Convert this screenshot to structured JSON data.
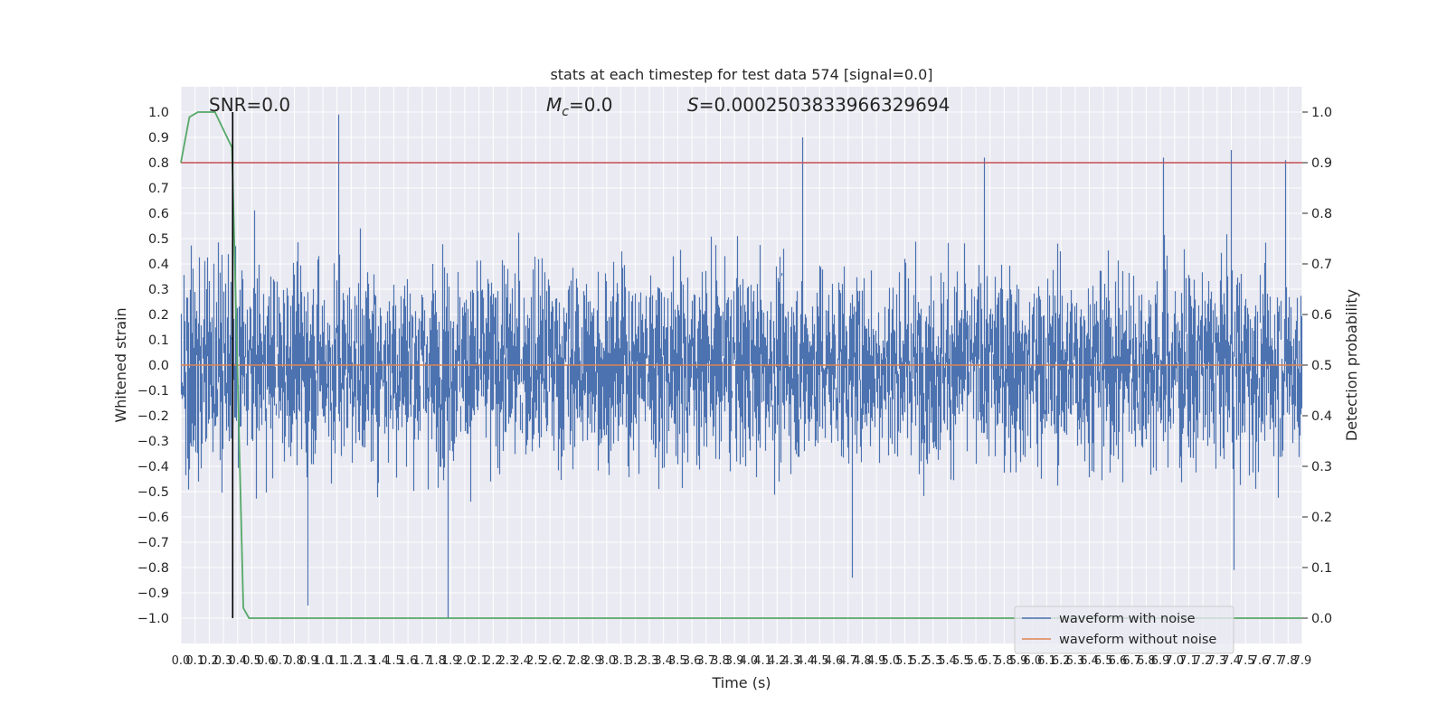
{
  "chart_data": {
    "type": "line",
    "title": "stats at each timestep for test data 574 [signal=0.0]",
    "xlabel": "Time (s)",
    "ylabel_left": "Whitened strain",
    "ylabel_right": "Detection probability",
    "xlim": [
      0.0,
      7.9
    ],
    "ylim_left": [
      -1.1,
      1.1
    ],
    "ylim_right": [
      -0.05,
      1.05
    ],
    "x_ticks": [
      "0.0",
      "0.1",
      "0.2",
      "0.3",
      "0.4",
      "0.5",
      "0.6",
      "0.7",
      "0.8",
      "0.9",
      "1.0",
      "1.1",
      "1.2",
      "1.3",
      "1.4",
      "1.5",
      "1.6",
      "1.7",
      "1.8",
      "1.9",
      "2.0",
      "2.1",
      "2.2",
      "2.3",
      "2.4",
      "2.5",
      "2.6",
      "2.7",
      "2.8",
      "2.9",
      "3.0",
      "3.1",
      "3.2",
      "3.3",
      "3.4",
      "3.5",
      "3.6",
      "3.7",
      "3.8",
      "3.9",
      "4.0",
      "4.1",
      "4.2",
      "4.3",
      "4.4",
      "4.5",
      "4.6",
      "4.7",
      "4.8",
      "4.9",
      "5.0",
      "5.1",
      "5.2",
      "5.3",
      "5.4",
      "5.5",
      "5.6",
      "5.7",
      "5.8",
      "5.9",
      "6.0",
      "6.1",
      "6.2",
      "6.3",
      "6.4",
      "6.5",
      "6.6",
      "6.7",
      "6.8",
      "6.9",
      "7.0",
      "7.1",
      "7.2",
      "7.3",
      "7.4",
      "7.5",
      "7.6",
      "7.7",
      "7.8",
      "7.9"
    ],
    "y_ticks_left": [
      "1.0",
      "0.9",
      "0.8",
      "0.7",
      "0.6",
      "0.5",
      "0.4",
      "0.3",
      "0.2",
      "0.1",
      "0.0",
      "−0.1",
      "−0.2",
      "−0.3",
      "−0.4",
      "−0.5",
      "−0.6",
      "−0.7",
      "−0.8",
      "−0.9",
      "−1.0"
    ],
    "y_ticks_right": [
      "1.0",
      "0.9",
      "0.8",
      "0.7",
      "0.6",
      "0.5",
      "0.4",
      "0.3",
      "0.2",
      "0.1",
      "0.0"
    ],
    "annotations": {
      "snr": "SNR=0.0",
      "mc_symbol": "M",
      "mc_sub": "c",
      "mc_value": "=0.0",
      "s_symbol": "S",
      "s_value": "=0.0002503833966329694"
    },
    "series": [
      {
        "name": "waveform with noise",
        "axis": "left",
        "color": "#4c72b0",
        "style": "dense noise, sampled",
        "sample_rate_hz": 512,
        "peak_points": [
          {
            "x": 1.11,
            "y": 0.99
          },
          {
            "x": 0.89,
            "y": -0.95
          },
          {
            "x": 1.88,
            "y": -1.0
          },
          {
            "x": 4.38,
            "y": 0.9
          },
          {
            "x": 4.73,
            "y": -0.84
          },
          {
            "x": 5.66,
            "y": 0.82
          },
          {
            "x": 7.4,
            "y": 0.85
          },
          {
            "x": 7.42,
            "y": -0.81
          },
          {
            "x": 7.78,
            "y": 0.81
          },
          {
            "x": 6.92,
            "y": 0.82
          }
        ]
      },
      {
        "name": "waveform without noise",
        "axis": "left",
        "color": "#dd8452",
        "x": [
          0.0,
          7.9
        ],
        "y": [
          0.0,
          0.0
        ]
      },
      {
        "axis": "right",
        "color": "#55a868",
        "x": [
          0.0,
          0.06,
          0.12,
          0.24,
          0.36,
          0.44,
          0.48,
          0.5,
          7.9
        ],
        "y": [
          0.9,
          0.99,
          1.0,
          1.0,
          0.93,
          0.02,
          0.0,
          0.0,
          0.0
        ]
      }
    ],
    "threshold": {
      "axis": "right",
      "value": 0.9,
      "color": "#c44e52"
    },
    "marker": {
      "x": 0.365,
      "color": "#000000"
    },
    "grid": true,
    "legend_position": "lower-right"
  }
}
